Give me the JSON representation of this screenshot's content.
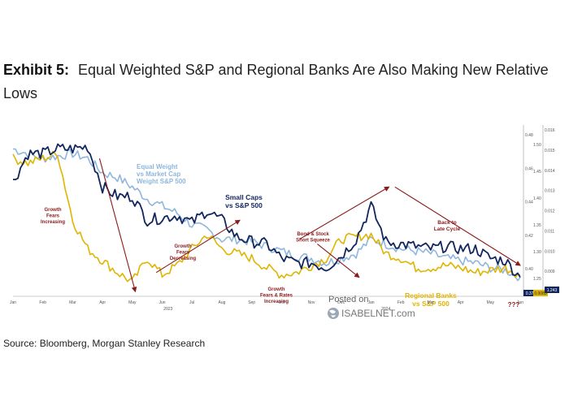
{
  "header": {
    "exhibit": "Exhibit 5:",
    "title_line1": "Equal Weighted S&P and Regional Banks Are Also Making New Relative",
    "title_line2": "Lows"
  },
  "source": "Source: Bloomberg, Morgan Stanley Research",
  "watermark": {
    "line1": "Posted on",
    "line2": "ISABELNET.com"
  },
  "chart_data": {
    "type": "line",
    "x_ticks": [
      "Jan",
      "Feb",
      "Mar",
      "Apr",
      "May",
      "Jun",
      "Jul",
      "Aug",
      "Sep",
      "Oct",
      "Nov",
      "Dec",
      "Jan",
      "Feb",
      "Mar",
      "Apr",
      "May",
      "Jun"
    ],
    "year_labels": [
      "2023",
      "2024"
    ],
    "y_left_ticks": [
      "0.48",
      "0.46",
      "0.44",
      "0.42",
      "0.40"
    ],
    "y_mid_ticks": [
      "1.50",
      "1.45",
      "1.40",
      "1.35",
      "1.30",
      "1.25"
    ],
    "y_right_ticks": [
      "0.016",
      "0.015",
      "0.014",
      "0.013",
      "0.012",
      "0.011",
      "0.010",
      "0.009",
      "0.008"
    ],
    "end_badges": [
      "0.372",
      "0.0083",
      "1.243"
    ],
    "colors": {
      "small_caps": "#12265e",
      "equal_weight": "#8fb6dc",
      "regional_banks": "#e0b400",
      "arrow": "#8b1a1a"
    },
    "series": [
      {
        "key": "small_caps",
        "x": [
          0,
          0.5,
          1,
          1.5,
          2,
          2.5,
          3,
          3.5,
          4,
          4.5,
          5,
          5.5,
          6,
          6.5,
          7,
          7.5,
          8,
          8.5,
          9,
          9.5,
          10,
          10.5,
          11,
          11.5,
          12,
          12.5,
          13,
          13.5,
          14,
          14.5,
          15,
          15.5,
          16,
          16.5,
          17
        ],
        "values": [
          48,
          60,
          60,
          62,
          62,
          63,
          46,
          42,
          42,
          32,
          33,
          34,
          31,
          36,
          32,
          25,
          23,
          22,
          16,
          14,
          14,
          12,
          17,
          24,
          38,
          23,
          22,
          21,
          20,
          21,
          20,
          20,
          16,
          15,
          8
        ]
      },
      {
        "key": "equal_weight",
        "x": [
          0,
          0.5,
          1,
          1.5,
          2,
          2.5,
          3,
          3.5,
          4,
          4.5,
          5,
          5.5,
          6,
          6.5,
          7,
          7.5,
          8,
          8.5,
          9,
          9.5,
          10,
          10.5,
          11,
          11.5,
          12,
          12.5,
          13,
          13.5,
          14,
          14.5,
          15,
          15.5,
          16,
          16.5,
          17
        ],
        "values": [
          62,
          60,
          58,
          59,
          60,
          58,
          52,
          50,
          46,
          41,
          38,
          35,
          30,
          28,
          24,
          24,
          23,
          21,
          19,
          17,
          16,
          14,
          16,
          18,
          24,
          22,
          20,
          19,
          18,
          16,
          15,
          14,
          12,
          11,
          8
        ]
      },
      {
        "key": "regional_banks",
        "x": [
          0,
          0.5,
          1,
          1.5,
          2,
          2.5,
          3,
          3.5,
          4,
          4.5,
          5,
          5.5,
          6,
          6.5,
          7,
          7.5,
          8,
          8.5,
          9,
          9.5,
          10,
          10.5,
          11,
          11.5,
          12,
          12.5,
          13,
          13.5,
          14,
          14.5,
          15,
          15.5,
          16,
          16.5,
          17
        ],
        "values": [
          58,
          56,
          58,
          60,
          32,
          20,
          15,
          10,
          6,
          16,
          9,
          13,
          20,
          26,
          20,
          18,
          16,
          12,
          9,
          10,
          13,
          16,
          24,
          25,
          26,
          18,
          16,
          12,
          12,
          13,
          12,
          10,
          11,
          12,
          9
        ]
      }
    ],
    "annotations": [
      {
        "lines": [
          "Equal Weight",
          "vs Market Cap",
          "Weight S&P 500"
        ],
        "color": "#8fb6dc"
      },
      {
        "lines": [
          "Small Caps",
          "vs S&P 500"
        ],
        "color": "#12265e"
      },
      {
        "lines": [
          "Regional Banks",
          "vs S&P 500"
        ],
        "color": "#e0b400"
      },
      {
        "lines": [
          "Growth",
          "Fears",
          "Increasing"
        ],
        "color": "#8b1a1a"
      },
      {
        "lines": [
          "Growth",
          "Fears",
          "Decreasing"
        ],
        "color": "#8b1a1a"
      },
      {
        "lines": [
          "Growth",
          "Fears & Rates",
          "Increasing"
        ],
        "color": "#8b1a1a"
      },
      {
        "lines": [
          "Bond & Stock",
          "Short Squeeze"
        ],
        "color": "#8b1a1a"
      },
      {
        "lines": [
          "Back to",
          "Late Cycle"
        ],
        "color": "#8b1a1a"
      },
      {
        "lines": [
          "???"
        ],
        "color": "#8b1a1a"
      }
    ]
  }
}
